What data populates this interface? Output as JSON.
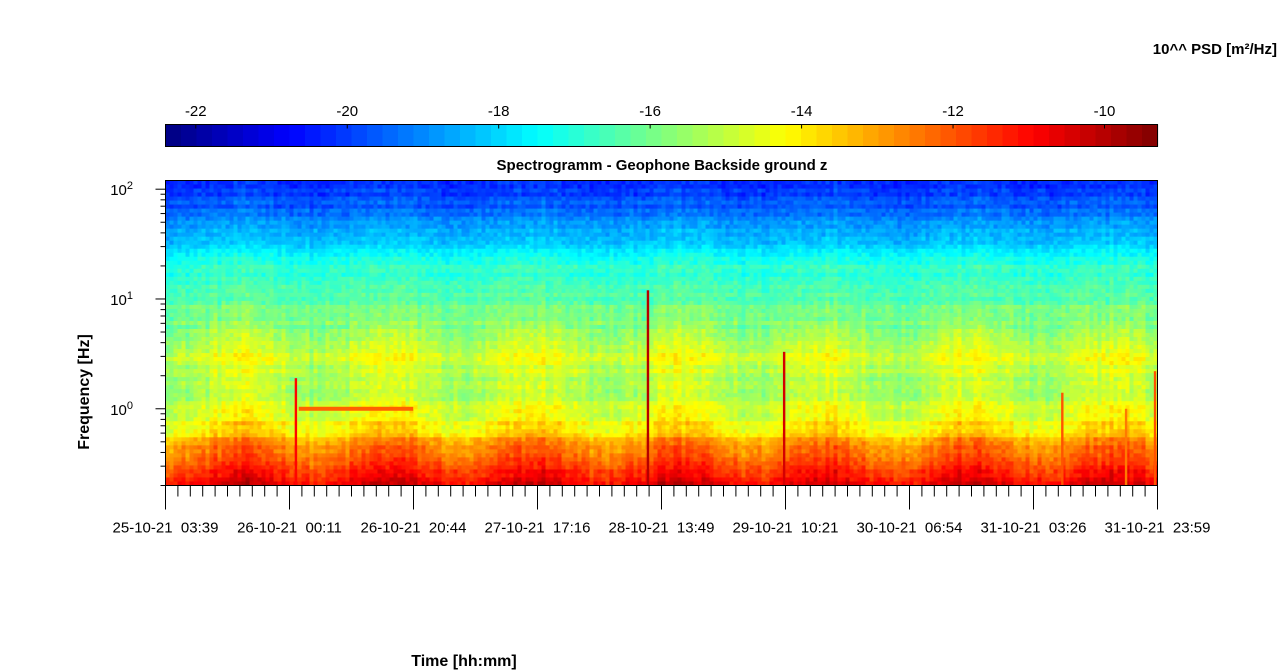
{
  "chart_data": {
    "type": "heatmap",
    "title": "Spectrogramm - Geophone Backside ground z",
    "xlabel": "Time [hh:mm]",
    "ylabel": "Frequency [Hz]",
    "yscale": "log",
    "ylim": [
      0.2,
      120
    ],
    "colormap": "jet",
    "colorbar": {
      "label": "10^^ PSD [m²/Hz]",
      "range": [
        -22.4,
        -9.3
      ],
      "ticks": [
        -22,
        -20,
        -18,
        -16,
        -14,
        -12,
        -10
      ],
      "tick_labels": [
        "-22",
        "-20",
        "-18",
        "-16",
        "-14",
        "-12",
        "-10"
      ],
      "placement": "top"
    },
    "x_ticks": [
      "25-10-21  03:39",
      "26-10-21  00:11",
      "26-10-21  20:44",
      "27-10-21  17:16",
      "28-10-21  13:49",
      "29-10-21  10:21",
      "30-10-21  06:54",
      "31-10-21  03:26",
      "31-10-21  23:59"
    ],
    "y_ticks": [
      {
        "value": 1,
        "mantissa": "10",
        "exp": "0"
      },
      {
        "value": 10,
        "mantissa": "10",
        "exp": "1"
      },
      {
        "value": 100,
        "mantissa": "10",
        "exp": "2"
      }
    ],
    "x_range_days": [
      0,
      6.847
    ],
    "frequency_bands": [
      {
        "f": 0.2,
        "level": -10.6
      },
      {
        "f": 0.3,
        "level": -11.7
      },
      {
        "f": 0.45,
        "level": -12.6
      },
      {
        "f": 0.62,
        "level": -13.7
      },
      {
        "f": 0.9,
        "level": -14.6
      },
      {
        "f": 1.3,
        "level": -15.1
      },
      {
        "f": 2.2,
        "level": -15.0
      },
      {
        "f": 3.2,
        "level": -14.6
      },
      {
        "f": 5,
        "level": -15.6
      },
      {
        "f": 10,
        "level": -16.3
      },
      {
        "f": 20,
        "level": -17.0
      },
      {
        "f": 40,
        "level": -18.5
      },
      {
        "f": 70,
        "level": -19.6
      },
      {
        "f": 120,
        "level": -20.2
      }
    ],
    "daily_modulation_amplitude": 1.0,
    "events": [
      {
        "day": 0.9,
        "fmax": 1.9,
        "level": -11.0
      },
      {
        "day": 3.33,
        "fmax": 12,
        "level": -10.0
      },
      {
        "day": 4.27,
        "fmax": 3.3,
        "level": -10.4
      },
      {
        "day": 6.19,
        "fmax": 1.4,
        "level": -12.0
      },
      {
        "day": 6.63,
        "fmax": 1.0,
        "level": -12.5
      },
      {
        "day": 6.83,
        "fmax": 2.2,
        "level": -12.0
      }
    ],
    "line_at_1hz": {
      "day_start": 0.92,
      "day_end": 1.71,
      "level": -12.2
    }
  }
}
